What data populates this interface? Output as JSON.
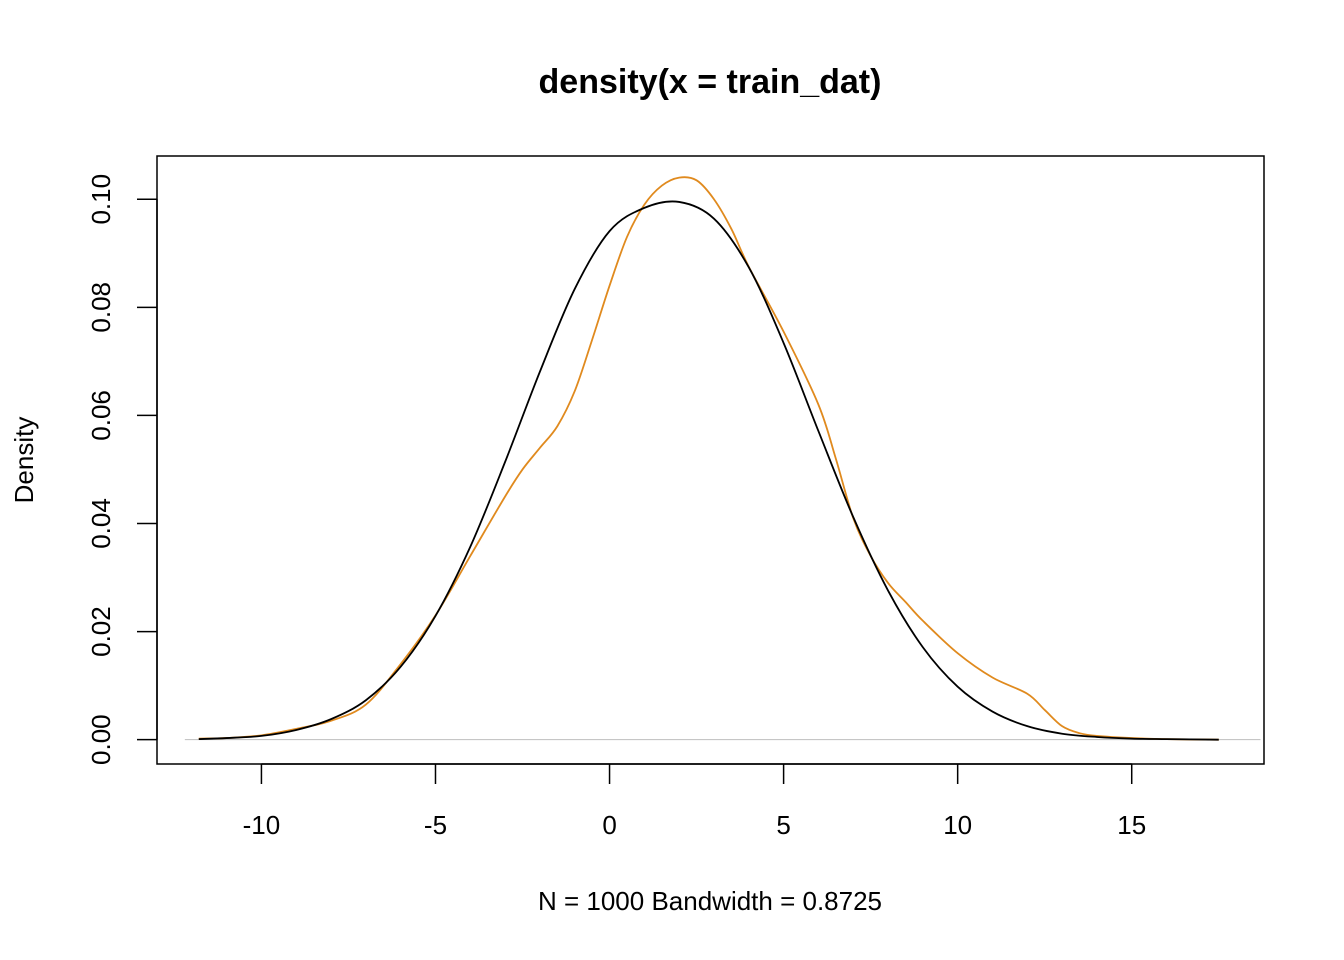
{
  "chart_data": {
    "type": "line",
    "title": "density(x = train_dat)",
    "xlabel": "N = 1000   Bandwidth = 0.8725",
    "ylabel": "Density",
    "xlim": [
      -13,
      18.8
    ],
    "ylim": [
      -0.0045,
      0.108
    ],
    "x_ticks": [
      -10,
      -5,
      0,
      5,
      10,
      15
    ],
    "x_tick_labels": [
      "-10",
      "-5",
      "0",
      "5",
      "10",
      "15"
    ],
    "y_ticks": [
      0.0,
      0.02,
      0.04,
      0.06,
      0.08,
      0.1
    ],
    "y_tick_labels": [
      "0.00",
      "0.02",
      "0.04",
      "0.06",
      "0.08",
      "0.10"
    ],
    "grid": false,
    "legend": "none",
    "zero_line": {
      "y": 0,
      "color": "#bebebe"
    },
    "series": [
      {
        "color": "#e08a1e",
        "x": [
          -11.8,
          -11,
          -10,
          -9,
          -8,
          -7,
          -6,
          -5,
          -4,
          -3,
          -2.5,
          -2,
          -1.5,
          -1,
          -0.5,
          0,
          0.5,
          1,
          1.5,
          2,
          2.5,
          3,
          3.5,
          4,
          5,
          6,
          6.5,
          7,
          7.5,
          8,
          8.5,
          9,
          10,
          11,
          12,
          12.5,
          13,
          13.5,
          14,
          15,
          16,
          17.5
        ],
        "y": [
          0.0002,
          0.0003,
          0.0008,
          0.002,
          0.0035,
          0.0065,
          0.014,
          0.023,
          0.034,
          0.045,
          0.05,
          0.054,
          0.058,
          0.0645,
          0.074,
          0.084,
          0.093,
          0.099,
          0.1025,
          0.104,
          0.1035,
          0.1,
          0.0945,
          0.0875,
          0.0755,
          0.062,
          0.052,
          0.041,
          0.034,
          0.029,
          0.0255,
          0.022,
          0.016,
          0.0115,
          0.0085,
          0.0055,
          0.0025,
          0.0012,
          0.0007,
          0.0003,
          0.0001,
          0.0
        ]
      },
      {
        "color": "#000000",
        "x": [
          -11.8,
          -11,
          -10,
          -9,
          -8,
          -7,
          -6,
          -5,
          -4,
          -3,
          -2,
          -1,
          0,
          1,
          2,
          3,
          4,
          5,
          6,
          7,
          8,
          9,
          10,
          11,
          12,
          13,
          14,
          15,
          16,
          17.5
        ],
        "y": [
          0.0001,
          0.0003,
          0.0007,
          0.0018,
          0.0038,
          0.0073,
          0.0135,
          0.0229,
          0.0357,
          0.0514,
          0.0681,
          0.0834,
          0.0941,
          0.0984,
          0.0995,
          0.0964,
          0.0874,
          0.0734,
          0.0571,
          0.0412,
          0.0276,
          0.0171,
          0.0098,
          0.0052,
          0.0025,
          0.0011,
          0.0005,
          0.0002,
          0.0001,
          0.0
        ]
      }
    ]
  }
}
